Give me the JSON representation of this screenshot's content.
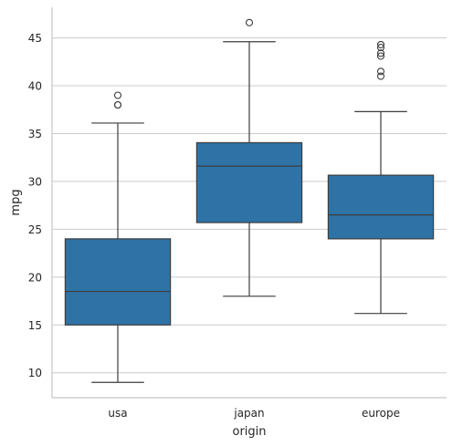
{
  "chart_data": {
    "type": "box",
    "xlabel": "origin",
    "ylabel": "mpg",
    "categories": [
      "usa",
      "japan",
      "europe"
    ],
    "ylim": [
      7.4,
      48.2
    ],
    "yticks": [
      10,
      15,
      20,
      25,
      30,
      35,
      40,
      45
    ],
    "grid": "horizontal",
    "color": "#2e72a6",
    "boxes": [
      {
        "category": "usa",
        "whisker_low": 9.0,
        "q1": 15.0,
        "median": 18.5,
        "q3": 24.0,
        "whisker_high": 36.1,
        "outliers": [
          38.0,
          38.0,
          39.0
        ]
      },
      {
        "category": "japan",
        "whisker_low": 18.0,
        "q1": 25.7,
        "median": 31.6,
        "q3": 34.05,
        "whisker_high": 44.6,
        "outliers": [
          46.6
        ]
      },
      {
        "category": "europe",
        "whisker_low": 16.2,
        "q1": 24.0,
        "median": 26.5,
        "q3": 30.65,
        "whisker_high": 37.3,
        "outliers": [
          41.0,
          41.5,
          43.1,
          43.4,
          44.0,
          44.3
        ]
      }
    ]
  }
}
